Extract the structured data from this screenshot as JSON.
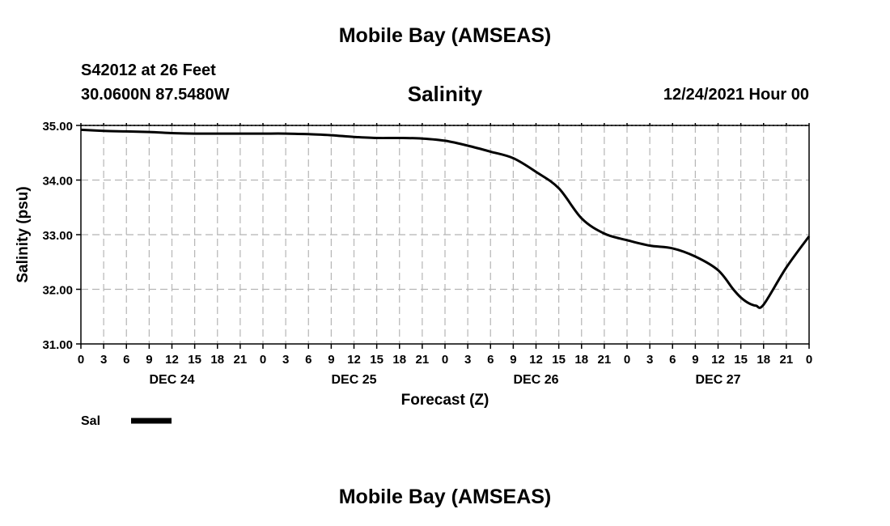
{
  "header": {
    "top_title": "Mobile Bay (AMSEAS)",
    "station": "S42012 at 26 Feet",
    "coords": "30.0600N  87.5480W",
    "valid_time": "12/24/2021 Hour 00",
    "bottom_title": "Mobile Bay (AMSEAS)"
  },
  "chart_data": {
    "type": "line",
    "title": "Salinity",
    "xlabel": "Forecast (Z)",
    "ylabel": "Salinity (psu)",
    "ylim": [
      31,
      35
    ],
    "xlim": [
      0,
      96
    ],
    "y_ticks": [
      "35.00",
      "34.00",
      "33.00",
      "32.00",
      "31.00"
    ],
    "y_tick_values": [
      35,
      34,
      33,
      32,
      31
    ],
    "x_tick_labels": [
      "0",
      "3",
      "6",
      "9",
      "12",
      "15",
      "18",
      "21",
      "0",
      "3",
      "6",
      "9",
      "12",
      "15",
      "18",
      "21",
      "0",
      "3",
      "6",
      "9",
      "12",
      "15",
      "18",
      "21",
      "0",
      "3",
      "6",
      "9",
      "12",
      "15",
      "18",
      "21",
      "0"
    ],
    "day_labels": [
      {
        "label": "DEC 24",
        "hour": 12
      },
      {
        "label": "DEC 25",
        "hour": 36
      },
      {
        "label": "DEC 26",
        "hour": 60
      },
      {
        "label": "DEC 27",
        "hour": 84
      }
    ],
    "grid": true,
    "legend": {
      "label": "Sal",
      "position": "bottom-left"
    },
    "series": [
      {
        "name": "Sal",
        "color": "#000000",
        "x": [
          0,
          3,
          6,
          9,
          12,
          15,
          18,
          21,
          24,
          27,
          30,
          33,
          36,
          39,
          42,
          45,
          48,
          51,
          54,
          57,
          60,
          63,
          66,
          69,
          72,
          75,
          78,
          81,
          84,
          86,
          87,
          88,
          89,
          90,
          93,
          96
        ],
        "values": [
          34.92,
          34.9,
          34.89,
          34.88,
          34.86,
          34.85,
          34.85,
          34.85,
          34.85,
          34.85,
          34.84,
          34.82,
          34.79,
          34.77,
          34.77,
          34.76,
          34.72,
          34.63,
          34.52,
          34.4,
          34.15,
          33.85,
          33.3,
          33.02,
          32.9,
          32.8,
          32.75,
          32.6,
          32.35,
          32.0,
          31.85,
          31.75,
          31.7,
          31.72,
          32.4,
          32.97
        ]
      }
    ]
  }
}
